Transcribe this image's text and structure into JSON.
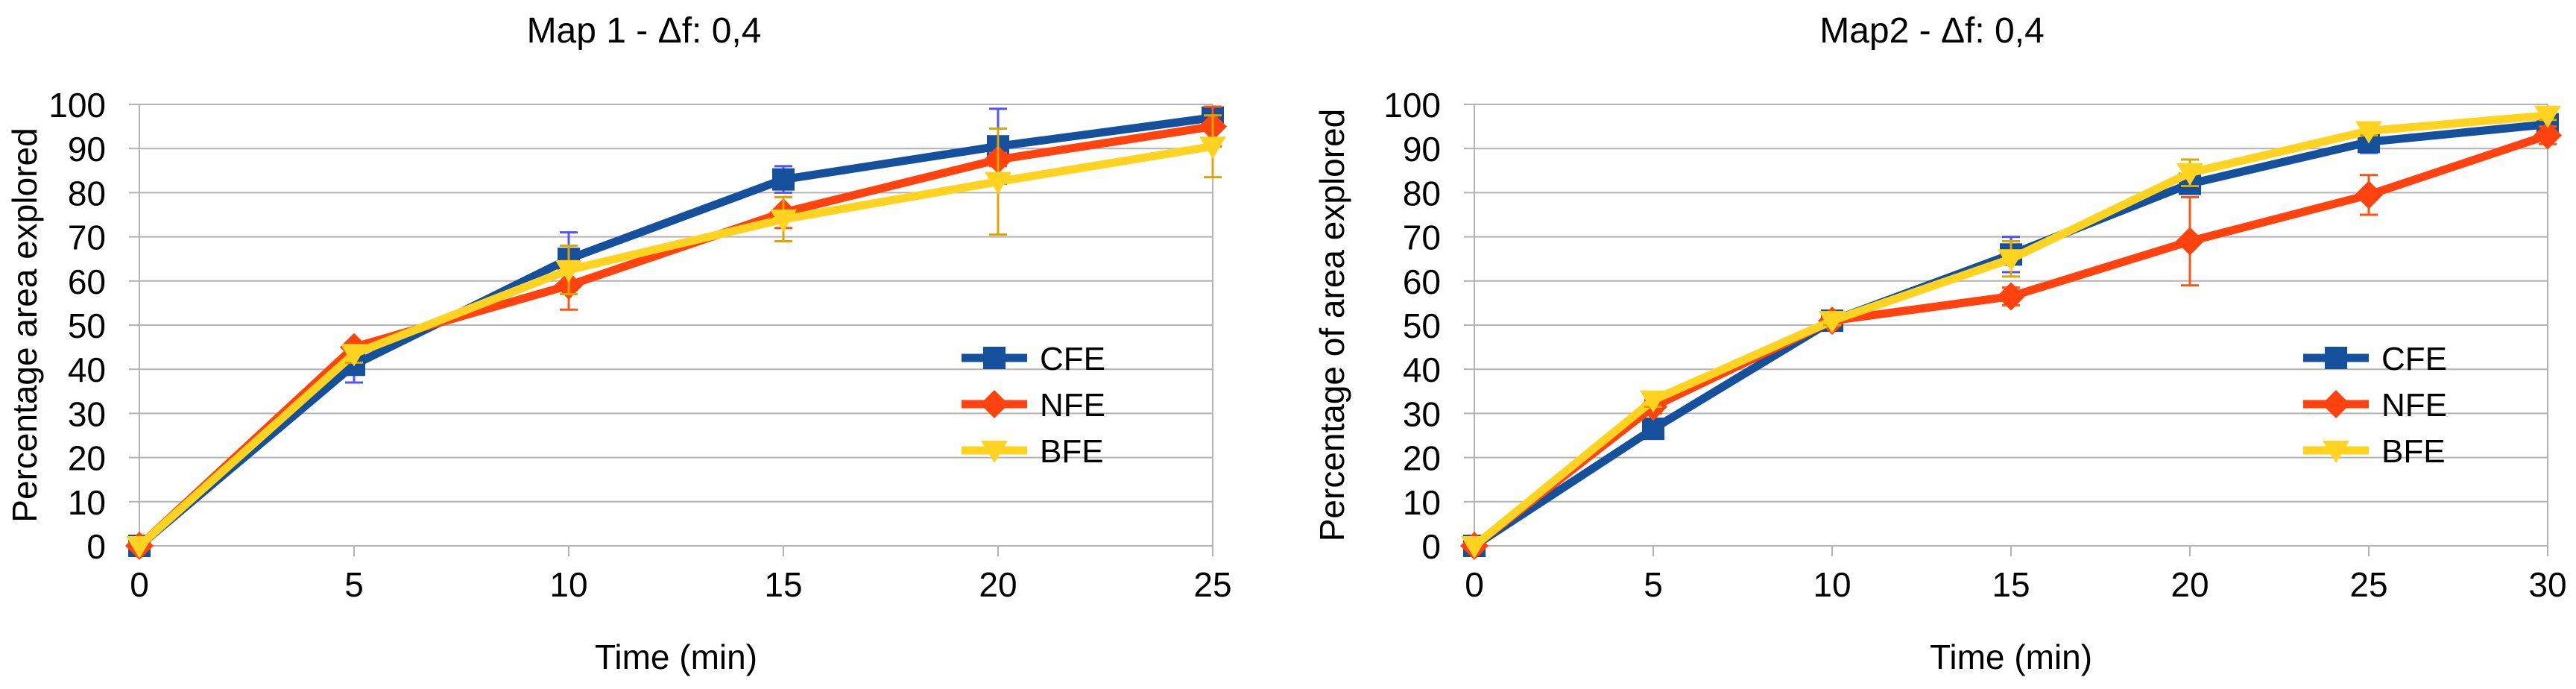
{
  "figure": {
    "background": "#ffffff",
    "gridline_color": "#b3b3b3",
    "text_color": "#000000"
  },
  "chart_data": [
    {
      "type": "line",
      "title": "Map 1 - Δf: 0,4",
      "xlabel": "Time (min)",
      "ylabel": "Percentage area explored",
      "xlim": [
        0,
        25
      ],
      "ylim": [
        0,
        100
      ],
      "xticks": [
        0,
        5,
        10,
        15,
        20,
        25
      ],
      "yticks": [
        0,
        10,
        20,
        30,
        40,
        50,
        60,
        70,
        80,
        90,
        100
      ],
      "grid": "horizontal",
      "legend_position": "right-middle",
      "x": [
        0,
        5,
        10,
        15,
        20,
        25
      ],
      "series": [
        {
          "name": "CFE",
          "marker": "square",
          "color": "#14509b",
          "err_color": "#5252ff",
          "values": [
            0,
            41,
            65,
            83,
            90.5,
            97
          ],
          "errors": [
            0,
            4,
            6,
            3,
            8.5,
            1.5
          ]
        },
        {
          "name": "NFE",
          "marker": "diamond",
          "color": "#ff420e",
          "err_color": "#ff5511",
          "values": [
            0,
            45,
            59,
            75.5,
            87.5,
            95
          ],
          "errors": [
            0,
            1,
            5.5,
            3.5,
            1.5,
            4.5
          ]
        },
        {
          "name": "BFE",
          "marker": "triangle-down",
          "color": "#ffd320",
          "err_color": "#d9a700",
          "values": [
            0,
            43.5,
            62.5,
            74,
            82.5,
            90.5
          ],
          "errors": [
            0,
            2,
            5.5,
            5,
            12,
            7
          ]
        }
      ]
    },
    {
      "type": "line",
      "title": "Map2 - Δf: 0,4",
      "xlabel": "Time (min)",
      "ylabel": "Percentage of area explored",
      "xlim": [
        0,
        30
      ],
      "ylim": [
        0,
        100
      ],
      "xticks": [
        0,
        5,
        10,
        15,
        20,
        25,
        30
      ],
      "yticks": [
        0,
        10,
        20,
        30,
        40,
        50,
        60,
        70,
        80,
        90,
        100
      ],
      "grid": "horizontal",
      "legend_position": "right-middle",
      "x": [
        0,
        5,
        10,
        15,
        20,
        25,
        30
      ],
      "series": [
        {
          "name": "CFE",
          "marker": "square",
          "color": "#14509b",
          "err_color": "#5252ff",
          "values": [
            0,
            26.5,
            51,
            66,
            82,
            91.5,
            95.5
          ],
          "errors": [
            0,
            1.5,
            1,
            4,
            1.5,
            2.5,
            1.5
          ]
        },
        {
          "name": "NFE",
          "marker": "diamond",
          "color": "#ff420e",
          "err_color": "#ff5511",
          "values": [
            0,
            31.5,
            51,
            56.5,
            69,
            79.5,
            93
          ],
          "errors": [
            0,
            1.5,
            1,
            2,
            10,
            4.5,
            2
          ]
        },
        {
          "name": "BFE",
          "marker": "triangle-down",
          "color": "#ffd320",
          "err_color": "#d9a700",
          "values": [
            0,
            33,
            51,
            65,
            84.5,
            94,
            97.5
          ],
          "errors": [
            0,
            1.5,
            1,
            4,
            3,
            1,
            1
          ]
        }
      ]
    }
  ]
}
